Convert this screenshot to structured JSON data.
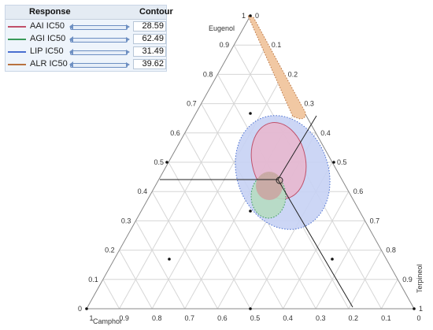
{
  "panel": {
    "header_response": "Response",
    "header_contour": "Contour",
    "rows": [
      {
        "label": "AAI IC50",
        "value": "28.59",
        "color": "#c0506a"
      },
      {
        "label": "AGI IC50",
        "value": "62.49",
        "color": "#3a9a5a"
      },
      {
        "label": "LIP IC50",
        "value": "31.49",
        "color": "#4a6fd0"
      },
      {
        "label": "ALR IC50",
        "value": "39.62",
        "color": "#b8723f"
      }
    ]
  },
  "ternary": {
    "labels": {
      "top": "Eugenol",
      "left": "Camphor",
      "right": "Terpineol"
    },
    "ticks": {
      "left": [
        "0",
        "0.1",
        "0.2",
        "0.3",
        "0.4",
        "0.5",
        "0.6",
        "0.7",
        "0.8",
        "0.9",
        "1"
      ],
      "right": [
        "0",
        "0.1",
        "0.2",
        "0.3",
        "0.4",
        "0.5",
        "0.6",
        "0.7",
        "0.8",
        "0.9",
        "1"
      ],
      "bottom": [
        "1",
        "0.9",
        "0.8",
        "0.7",
        "0.6",
        "0.5",
        "0.4",
        "0.3",
        "0.2",
        "0.1",
        "0"
      ]
    },
    "colors": {
      "grid": "#d6d6d6",
      "outline": "#888888",
      "alr_fill": "#f1c8a3",
      "lip_fill": "#c7d2f4",
      "aai_fill": "#e9b6cc",
      "agi_fill": "#b6dcc2",
      "overlap_fill": "#c9a9a4"
    }
  }
}
